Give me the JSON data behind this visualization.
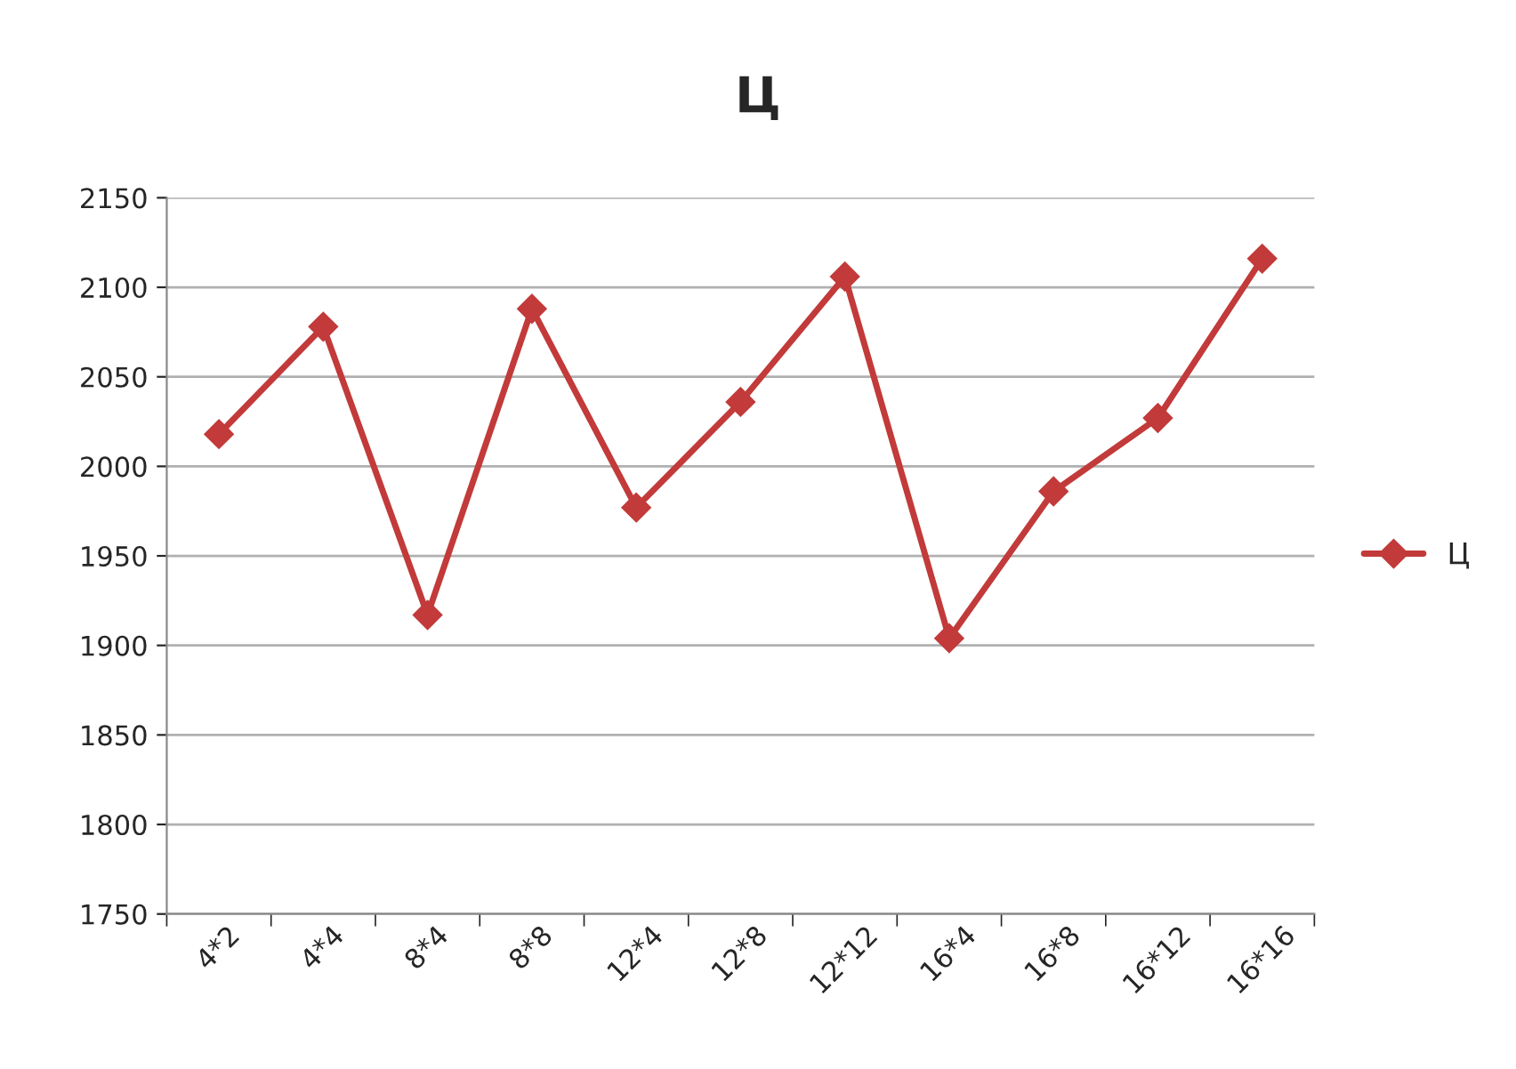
{
  "chart_data": {
    "type": "line",
    "title": "Ц",
    "categories": [
      "4*2",
      "4*4",
      "8*4",
      "8*8",
      "12*4",
      "12*8",
      "12*12",
      "16*4",
      "16*8",
      "16*12",
      "16*16"
    ],
    "series": [
      {
        "name": "Ц",
        "color": "#c23a3a",
        "values": [
          2018,
          2078,
          1917,
          2088,
          1977,
          2036,
          2106,
          1904,
          1986,
          2027,
          2116
        ]
      }
    ],
    "ylim": [
      1750,
      2150
    ],
    "yticks": [
      1750,
      1800,
      1850,
      1900,
      1950,
      2000,
      2050,
      2100,
      2150
    ],
    "grid": "y",
    "legend": "right",
    "marker": "diamond",
    "line_style": "solid"
  }
}
